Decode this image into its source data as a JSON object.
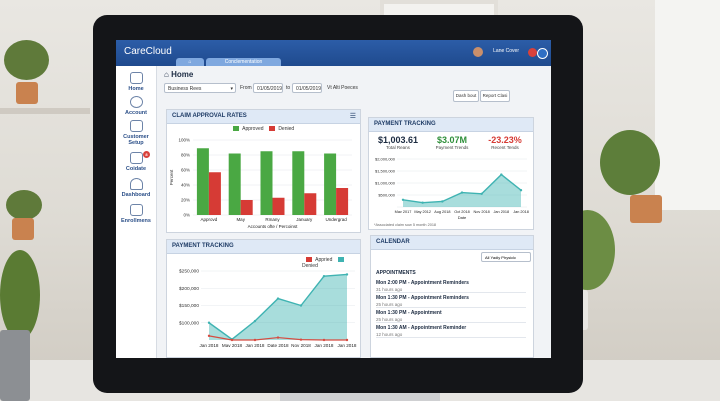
{
  "app": {
    "brand": "CareCloud",
    "tabs": [
      "",
      "Conclementation"
    ],
    "user_name": "Lane Cover"
  },
  "sidebar": {
    "items": [
      {
        "label": "Home",
        "icon": "home-icon"
      },
      {
        "label": "Account",
        "icon": "user-icon"
      },
      {
        "label": "Customer Setup",
        "icon": "person-gear-icon"
      },
      {
        "label": "Coidate",
        "icon": "calendar-icon",
        "badge": "8"
      },
      {
        "label": "Dashboard",
        "icon": "gauge-icon"
      },
      {
        "label": "Enrollmens",
        "icon": "clipboard-icon"
      }
    ]
  },
  "page": {
    "title": "Home"
  },
  "filters": {
    "business": "Business Rees",
    "from_label": "From",
    "from_date": "01/05/2019",
    "to_label": "to",
    "to_date": "01/05/2019",
    "scope": "Vt Alti Poeces",
    "btn_dash": "Dash bout",
    "btn_report": "Report Clasi"
  },
  "claim_panel": {
    "title": "CLAIM APPROVAL RATES",
    "legend_approved": "Approved",
    "legend_denied": "Denied"
  },
  "payment_panel": {
    "title": "PAYMENT TRACKING",
    "kpi1_value": "$1,003.61",
    "kpi1_label": "Total Reans",
    "kpi2_value": "$3.07M",
    "kpi2_label": "Payment Trends",
    "kpi3_value": "-23.23%",
    "kpi3_label": "Recent Tends",
    "footnote": "*Associated claim sow 5 month 2018"
  },
  "payment_panel2": {
    "title": "PAYMENT TRACKING",
    "legend_applied": "Appried",
    "legend_denied": "Denied"
  },
  "calendar": {
    "title": "CALENDAR",
    "select": "All Yadiy Physiclc",
    "section": "APPOINTMENTS",
    "items": [
      {
        "time": "Mon 2:00 PM - Appointment Reminders",
        "ago": "31 hours ago"
      },
      {
        "time": "Mon 1:30 PM - Appointment Reminders",
        "ago": "25 hours ago"
      },
      {
        "time": "Mon 1:30 PM - Appointment",
        "ago": "25 hours ago"
      },
      {
        "time": "Mon 1:30 AM - Appointment Reminder",
        "ago": "12 hours ago"
      }
    ]
  },
  "colors": {
    "approved": "#4aa843",
    "denied": "#d63b35",
    "teal": "#3fb3b2",
    "red_line": "#d64b40"
  },
  "chart_data": [
    {
      "type": "bar",
      "categories": [
        "Approvd",
        "May",
        "Rmany",
        "January",
        "Undergrad"
      ],
      "series": [
        {
          "name": "Approved",
          "values": [
            89,
            82,
            85,
            85,
            82
          ]
        },
        {
          "name": "Denied",
          "values": [
            57,
            20,
            23,
            29,
            36
          ]
        }
      ],
      "xlabel": "Accounts ofte / Percoinst",
      "ylabel": "Percent",
      "ylim": [
        0,
        100
      ],
      "yticks": [
        "0%",
        "20%",
        "40%",
        "60%",
        "80%",
        "100%"
      ]
    },
    {
      "type": "area",
      "categories": [
        "Mav 2017",
        "May 2012",
        "Aug 2018",
        "Oct 2018",
        "Nov 2018",
        "Jan 2018",
        "Jan 2018"
      ],
      "values": [
        300000,
        180000,
        230000,
        600000,
        550000,
        1350000,
        700000
      ],
      "ylim": [
        0,
        2000000
      ],
      "yticks": [
        "",
        "$500,000",
        "$1,000,000",
        "$1,500,000",
        "$2,000,000"
      ],
      "xlabel": "Date"
    },
    {
      "type": "area",
      "categories": [
        "Jan 2018",
        "Mav 2018",
        "Jan 2018",
        "Date 2018",
        "Nov 2018",
        "Jan 2018",
        "Jan 2018"
      ],
      "series": [
        {
          "name": "Appried",
          "values": [
            62000,
            50000,
            48000,
            57000,
            51000,
            45000,
            49000
          ]
        },
        {
          "name": "Denied",
          "values": [
            100000,
            52000,
            105000,
            170000,
            150000,
            235000,
            240000
          ]
        }
      ],
      "ylim": [
        0,
        250000
      ],
      "yticks": [
        "$100,000",
        "$150,000",
        "$200,000",
        "$250,000"
      ]
    }
  ]
}
